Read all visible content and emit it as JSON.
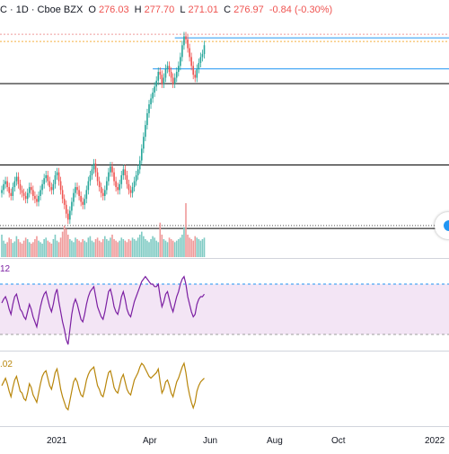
{
  "header": {
    "title_fragment": "C · 1D · Cboe BZX",
    "open_label": "O",
    "open": "276.03",
    "high_label": "H",
    "high": "277.70",
    "low_label": "L",
    "low": "271.01",
    "close_label": "C",
    "close": "276.97",
    "change": "-0.84 (-0.30%)"
  },
  "oscillators": {
    "rsi_value_fragment": "12",
    "second_value_fragment": ".02"
  },
  "x_axis": {
    "labels": [
      "2021",
      "Apr",
      "Jun",
      "Aug",
      "Oct",
      "2022"
    ]
  },
  "colors": {
    "up": "#26a69a",
    "down": "#ef5350",
    "rsi_line": "#7b1fa2",
    "rsi_band": "#f3e5f5",
    "osc2_line": "#b8860b",
    "level_line": "#2196f3"
  },
  "chart_data": [
    {
      "type": "candlestick",
      "title": "",
      "xlabel": "",
      "ylabel": "",
      "price_range": [
        140,
        300
      ],
      "horizontal_levels": [
        258,
        203,
        160
      ],
      "resistance_levels": [
        289,
        268
      ],
      "series": [
        {
          "close": [
            186,
            190,
            192,
            188,
            184,
            182,
            188,
            192,
            195,
            190,
            186,
            184,
            182,
            180,
            184,
            188,
            186,
            182,
            180,
            178,
            182,
            186,
            190,
            194,
            196,
            192,
            188,
            186,
            190,
            196,
            198,
            192,
            186,
            180,
            176,
            170,
            166,
            172,
            178,
            184,
            188,
            186,
            182,
            178,
            176,
            180,
            186,
            192,
            196,
            200,
            204,
            198,
            192,
            188,
            184,
            182,
            186,
            192,
            198,
            202,
            198,
            192,
            188,
            186,
            190,
            196,
            200,
            196,
            190,
            186,
            184,
            188,
            192,
            196,
            200,
            206,
            214,
            222,
            230,
            238,
            244,
            248,
            252,
            256,
            260,
            266,
            264,
            258,
            262,
            268,
            270,
            266,
            262,
            258,
            262,
            266,
            270,
            276,
            284,
            290,
            288,
            282,
            276,
            270,
            264,
            262,
            268,
            272,
            276,
            278,
            284
          ]
        }
      ]
    },
    {
      "type": "bar",
      "title": "",
      "series": [
        {
          "values": [
            30,
            22,
            18,
            20,
            26,
            24,
            19,
            21,
            28,
            24,
            20,
            18,
            22,
            26,
            24,
            20,
            18,
            20,
            24,
            28,
            22,
            20,
            18,
            24,
            26,
            22,
            20,
            18,
            24,
            30,
            22,
            20,
            26,
            34,
            42,
            38,
            30,
            24,
            22,
            20,
            26,
            24,
            22,
            20,
            24,
            22,
            20,
            26,
            28,
            22,
            20,
            24,
            26,
            22,
            20,
            24,
            28,
            24,
            22,
            26,
            30,
            24,
            22,
            20,
            22,
            26,
            24,
            22,
            20,
            24,
            22,
            26,
            24,
            22,
            26,
            30,
            34,
            28,
            24,
            22,
            20,
            24,
            28,
            26,
            22,
            20,
            46,
            30,
            24,
            22,
            20,
            26,
            24,
            22,
            20,
            22,
            24,
            26,
            30,
            40,
            72,
            30,
            26,
            24,
            22,
            28,
            26,
            24,
            22,
            24,
            26
          ]
        }
      ]
    },
    {
      "type": "line",
      "name": "RSI",
      "ylim": [
        20,
        80
      ],
      "bands": [
        70,
        30
      ],
      "series": [
        {
          "values": [
            55,
            58,
            60,
            56,
            50,
            46,
            54,
            60,
            62,
            56,
            50,
            48,
            44,
            42,
            48,
            54,
            50,
            44,
            40,
            36,
            44,
            52,
            58,
            62,
            64,
            58,
            52,
            48,
            54,
            62,
            66,
            56,
            48,
            40,
            34,
            26,
            22,
            34,
            46,
            54,
            58,
            54,
            48,
            42,
            40,
            46,
            54,
            60,
            64,
            66,
            68,
            60,
            52,
            48,
            44,
            42,
            48,
            56,
            64,
            66,
            60,
            52,
            48,
            46,
            52,
            60,
            64,
            58,
            50,
            46,
            44,
            50,
            56,
            60,
            64,
            68,
            72,
            74,
            76,
            74,
            72,
            70,
            70,
            68,
            68,
            70,
            60,
            52,
            56,
            62,
            64,
            58,
            52,
            48,
            54,
            60,
            64,
            70,
            74,
            76,
            70,
            60,
            54,
            48,
            44,
            46,
            54,
            58,
            60,
            60,
            62
          ]
        }
      ]
    },
    {
      "type": "line",
      "name": "oscillator",
      "series": [
        {
          "values": [
            0.2,
            0.6,
            1.0,
            0.4,
            -0.4,
            -1.0,
            0.0,
            0.8,
            1.2,
            0.4,
            -0.4,
            -0.6,
            -1.2,
            -1.4,
            -0.6,
            0.4,
            0.0,
            -0.8,
            -1.2,
            -1.6,
            -0.6,
            0.4,
            1.2,
            1.6,
            1.8,
            1.0,
            0.2,
            -0.2,
            0.6,
            1.6,
            2.0,
            1.0,
            -0.2,
            -1.0,
            -1.6,
            -2.2,
            -2.4,
            -1.4,
            -0.4,
            0.6,
            1.0,
            0.6,
            -0.2,
            -0.8,
            -1.0,
            -0.2,
            0.8,
            1.4,
            1.8,
            2.0,
            2.2,
            1.2,
            0.2,
            -0.2,
            -0.8,
            -1.0,
            -0.2,
            0.8,
            1.6,
            1.8,
            1.0,
            0.0,
            -0.4,
            -0.6,
            0.2,
            1.0,
            1.4,
            0.6,
            -0.2,
            -0.6,
            -0.8,
            0.0,
            0.8,
            1.2,
            1.6,
            2.2,
            2.6,
            2.4,
            2.0,
            1.6,
            1.2,
            1.0,
            1.2,
            1.4,
            1.6,
            2.0,
            0.6,
            -0.6,
            -0.2,
            0.6,
            0.8,
            0.2,
            -0.6,
            -1.0,
            -0.2,
            0.6,
            1.0,
            1.6,
            2.2,
            2.6,
            1.6,
            0.2,
            -0.8,
            -1.6,
            -2.2,
            -1.6,
            -0.4,
            0.2,
            0.6,
            0.8,
            1.0
          ]
        }
      ]
    }
  ]
}
